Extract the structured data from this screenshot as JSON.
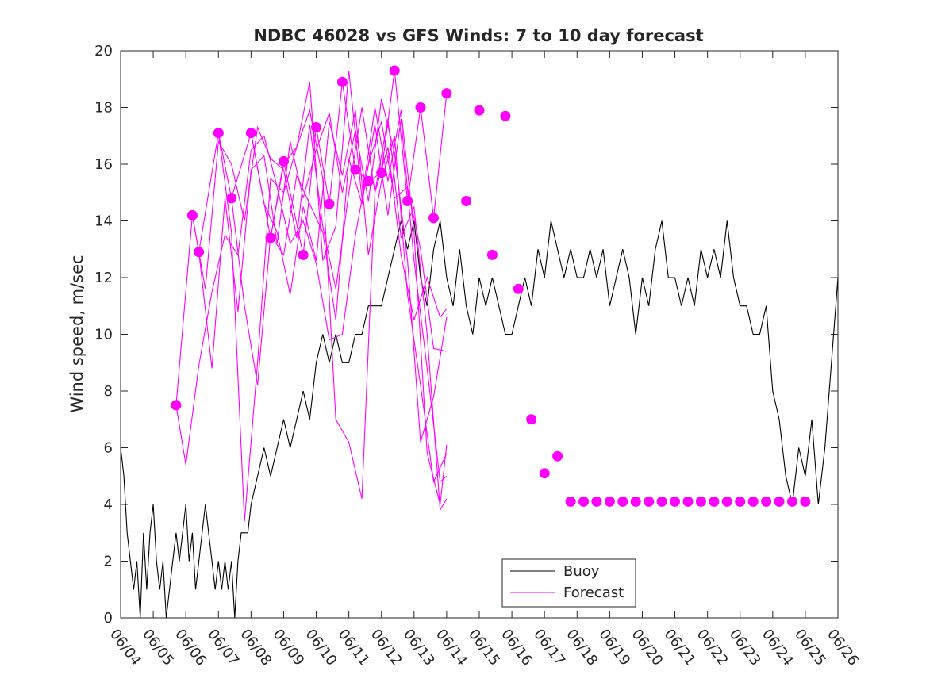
{
  "chart_data": {
    "type": "line",
    "title": "NDBC 46028 vs GFS Winds: 7 to 10 day forecast",
    "xlabel": "",
    "ylabel": "Wind speed, m/sec",
    "xlim": [
      "06/04",
      "06/26"
    ],
    "ylim": [
      0,
      20
    ],
    "x_ticks": [
      "06/04",
      "06/05",
      "06/06",
      "06/07",
      "06/08",
      "06/09",
      "06/10",
      "06/11",
      "06/12",
      "06/13",
      "06/14",
      "06/15",
      "06/16",
      "06/17",
      "06/18",
      "06/19",
      "06/20",
      "06/21",
      "06/22",
      "06/23",
      "06/24",
      "06/25",
      "06/26"
    ],
    "y_ticks": [
      "0",
      "2",
      "4",
      "6",
      "8",
      "10",
      "12",
      "14",
      "16",
      "18",
      "20"
    ],
    "legend": {
      "placement": "bottom-center",
      "entries": [
        {
          "label": "Buoy",
          "color": "#000000"
        },
        {
          "label": "Forecast",
          "color": "#ff00ff"
        }
      ]
    },
    "colors": {
      "buoy": "#000000",
      "forecast": "#ff00ff"
    },
    "series": [
      {
        "name": "Buoy",
        "x": [
          0,
          0.1,
          0.2,
          0.3,
          0.4,
          0.5,
          0.6,
          0.7,
          0.8,
          0.9,
          1.0,
          1.1,
          1.2,
          1.3,
          1.4,
          1.5,
          1.6,
          1.7,
          1.8,
          1.9,
          2.0,
          2.1,
          2.2,
          2.3,
          2.4,
          2.5,
          2.6,
          2.7,
          2.8,
          2.9,
          3.0,
          3.1,
          3.2,
          3.3,
          3.4,
          3.5,
          3.6,
          3.7,
          3.8,
          3.9,
          4.0,
          4.2,
          4.4,
          4.6,
          4.8,
          5.0,
          5.2,
          5.4,
          5.6,
          5.8,
          6.0,
          6.2,
          6.4,
          6.6,
          6.8,
          7.0,
          7.2,
          7.4,
          7.6,
          7.8,
          8.0,
          8.2,
          8.4,
          8.6,
          8.8,
          9.0,
          9.2,
          9.4,
          9.6,
          9.8,
          10.0,
          10.2,
          10.4,
          10.6,
          10.8,
          11.0,
          11.2,
          11.4,
          11.6,
          11.8,
          12.0,
          12.2,
          12.4,
          12.6,
          12.8,
          13.0,
          13.2,
          13.4,
          13.6,
          13.8,
          14.0,
          14.2,
          14.4,
          14.6,
          14.8,
          15.0,
          15.2,
          15.4,
          15.6,
          15.8,
          16.0,
          16.2,
          16.4,
          16.6,
          16.8,
          17.0,
          17.2,
          17.4,
          17.6,
          17.8,
          18.0,
          18.2,
          18.4,
          18.6,
          18.8,
          19.0,
          19.2,
          19.4,
          19.6,
          19.8,
          20.0,
          20.2,
          20.4,
          20.6,
          20.8,
          21.0,
          21.2,
          21.4,
          21.6,
          21.8,
          22.0
        ],
        "values": [
          6,
          5,
          3,
          2,
          1,
          2,
          0,
          3,
          1,
          3,
          4,
          2,
          1,
          2,
          0,
          1,
          2,
          3,
          2,
          3,
          4,
          2,
          3,
          1,
          2,
          3,
          4,
          3,
          2,
          1,
          2,
          1,
          2,
          1,
          2,
          0,
          2,
          3,
          3,
          3,
          4,
          5,
          6,
          5,
          6,
          7,
          6,
          7,
          8,
          7,
          9,
          10,
          9,
          10,
          9,
          9,
          10,
          10,
          11,
          11,
          11,
          12,
          13,
          14,
          13,
          14,
          12,
          11,
          13,
          14,
          12,
          11,
          13,
          11,
          10,
          12,
          11,
          12,
          11,
          10,
          10,
          11,
          12,
          11,
          13,
          12,
          14,
          13,
          12,
          13,
          12,
          12,
          13,
          12,
          13,
          11,
          12,
          13,
          12,
          10,
          12,
          11,
          13,
          14,
          12,
          12,
          11,
          12,
          11,
          13,
          12,
          13,
          12,
          14,
          12,
          11,
          11,
          10,
          10,
          11,
          8,
          7,
          5,
          4,
          6,
          5,
          7,
          4,
          6,
          9,
          12
        ]
      },
      {
        "name": "Forecast",
        "x": [
          1.7,
          2.0,
          2.4,
          2.8,
          3.2,
          3.6,
          4.0,
          4.4,
          4.8,
          5.2,
          5.6,
          6.0,
          6.4,
          6.8,
          7.2,
          7.6,
          8.0,
          8.4,
          8.8,
          9.2,
          9.6,
          10.0
        ],
        "values": [
          7.5,
          5.4,
          8.9,
          11.5,
          13.5,
          12.8,
          16.5,
          17.0,
          15.2,
          13.2,
          14.0,
          12.5,
          9.8,
          10.0,
          13.5,
          16.0,
          17.5,
          14.8,
          15.2,
          13.0,
          9.5,
          9.4
        ]
      },
      {
        "name": "Forecast",
        "x": [
          2.2,
          2.6,
          3.0,
          3.4,
          3.8,
          4.2,
          4.6,
          5.0,
          5.4,
          5.8,
          6.2,
          6.6,
          7.0,
          7.4,
          7.8,
          8.2,
          8.6,
          9.0,
          9.4,
          9.8,
          10.0
        ],
        "values": [
          14.2,
          11.6,
          16.8,
          16.0,
          14.0,
          17.3,
          16.2,
          15.8,
          13.4,
          17.4,
          13.8,
          11.6,
          15.0,
          18.0,
          15.0,
          16.6,
          12.8,
          10.5,
          12.0,
          10.6,
          10.9
        ]
      },
      {
        "name": "Forecast",
        "x": [
          2.4,
          2.8,
          3.2,
          3.6,
          4.0,
          4.4,
          4.8,
          5.2,
          5.6,
          6.0,
          6.4,
          6.8,
          7.2,
          7.6,
          8.0,
          8.4,
          8.8,
          9.2,
          9.6,
          10.0
        ],
        "values": [
          12.9,
          8.8,
          14.8,
          10.8,
          15.8,
          16.3,
          13.2,
          16.8,
          14.8,
          16.5,
          17.8,
          15.0,
          17.2,
          14.7,
          18.3,
          16.4,
          12.6,
          6.2,
          7.8,
          10.6
        ]
      },
      {
        "name": "Forecast",
        "x": [
          3.0,
          3.4,
          3.8,
          4.2,
          4.6,
          5.0,
          5.4,
          5.8,
          6.2,
          6.6,
          7.0,
          7.4,
          7.8,
          8.2,
          8.6,
          9.0,
          9.4,
          9.8,
          10.0
        ],
        "values": [
          17.1,
          13.6,
          3.4,
          9.0,
          15.5,
          15.0,
          16.6,
          18.9,
          12.6,
          13.8,
          19.3,
          14.8,
          18.0,
          15.4,
          17.9,
          13.6,
          5.8,
          4.0,
          6.1
        ]
      },
      {
        "name": "Forecast",
        "x": [
          3.4,
          3.8,
          4.2,
          4.6,
          5.0,
          5.4,
          5.8,
          6.2,
          6.6,
          7.0,
          7.4,
          7.8,
          8.2,
          8.6,
          9.0,
          9.4,
          9.8,
          10.0
        ],
        "values": [
          14.8,
          11.0,
          8.2,
          13.5,
          12.8,
          15.6,
          14.6,
          13.6,
          10.5,
          16.2,
          14.6,
          17.4,
          14.2,
          17.6,
          12.6,
          8.8,
          4.8,
          5.0
        ]
      },
      {
        "name": "Forecast",
        "x": [
          4.0,
          4.4,
          4.8,
          5.2,
          5.6,
          6.0,
          6.4,
          6.8,
          7.2,
          7.6,
          8.0,
          8.4,
          8.8,
          9.2,
          9.6,
          10.0
        ],
        "values": [
          17.1,
          14.6,
          13.6,
          11.4,
          14.5,
          12.6,
          17.5,
          15.6,
          17.9,
          12.8,
          15.4,
          17.0,
          11.4,
          8.2,
          4.8,
          5.8
        ]
      },
      {
        "name": "Forecast",
        "x": [
          4.6,
          5.0,
          5.4,
          5.8,
          6.2,
          6.6,
          7.0,
          7.4,
          7.8,
          8.2,
          8.6,
          9.0,
          9.4,
          9.8,
          10.0
        ],
        "values": [
          13.4,
          16.0,
          16.6,
          17.9,
          15.5,
          7.0,
          6.2,
          4.2,
          15.0,
          17.6,
          13.4,
          14.5,
          10.0,
          3.8,
          4.2
        ]
      },
      {
        "name": "Forecast",
        "x": [
          1.7,
          2.2,
          2.4,
          3.0,
          3.4,
          4.0,
          4.6,
          5.0,
          5.6,
          6.0,
          6.4,
          6.8,
          7.2,
          7.6,
          8.0,
          8.4,
          8.8,
          9.2,
          9.6,
          10.0
        ],
        "values": [
          7.5,
          14.2,
          12.9,
          17.1,
          14.8,
          17.1,
          13.4,
          16.1,
          12.8,
          17.3,
          14.6,
          18.9,
          15.8,
          15.4,
          15.7,
          19.3,
          14.7,
          18.0,
          14.1,
          18.5
        ]
      }
    ],
    "x_axis_days": {
      "start_tick_index": 0,
      "end_tick_index": 22
    },
    "forecast_markers": {
      "x": [
        1.7,
        2.2,
        2.4,
        3.0,
        3.4,
        4.0,
        4.6,
        5.0,
        5.6,
        6.0,
        6.4,
        6.8,
        7.2,
        7.6,
        8.0,
        8.4,
        8.8,
        9.2,
        9.6,
        10.0,
        10.6,
        11.0,
        11.4,
        11.8,
        12.2,
        12.6,
        13.0,
        13.4,
        13.8,
        14.2,
        14.6,
        15.0,
        15.4,
        15.8,
        16.2,
        16.6,
        17.0,
        17.4,
        17.8,
        18.2,
        18.6,
        19.0,
        19.4,
        19.8,
        20.2,
        20.6,
        21.0
      ],
      "values": [
        7.5,
        14.2,
        12.9,
        17.1,
        14.8,
        17.1,
        13.4,
        16.1,
        12.8,
        17.3,
        14.6,
        18.9,
        15.8,
        15.4,
        15.7,
        19.3,
        14.7,
        18.0,
        14.1,
        18.5,
        14.7,
        17.9,
        12.8,
        17.7,
        11.6,
        7.0,
        5.1,
        5.7,
        4.1,
        4.1,
        4.1,
        4.1,
        4.1,
        4.1,
        4.1,
        4.1,
        4.1,
        4.1,
        4.1,
        4.1,
        4.1,
        4.1,
        4.1,
        4.1,
        4.1,
        4.1,
        4.1
      ]
    }
  }
}
